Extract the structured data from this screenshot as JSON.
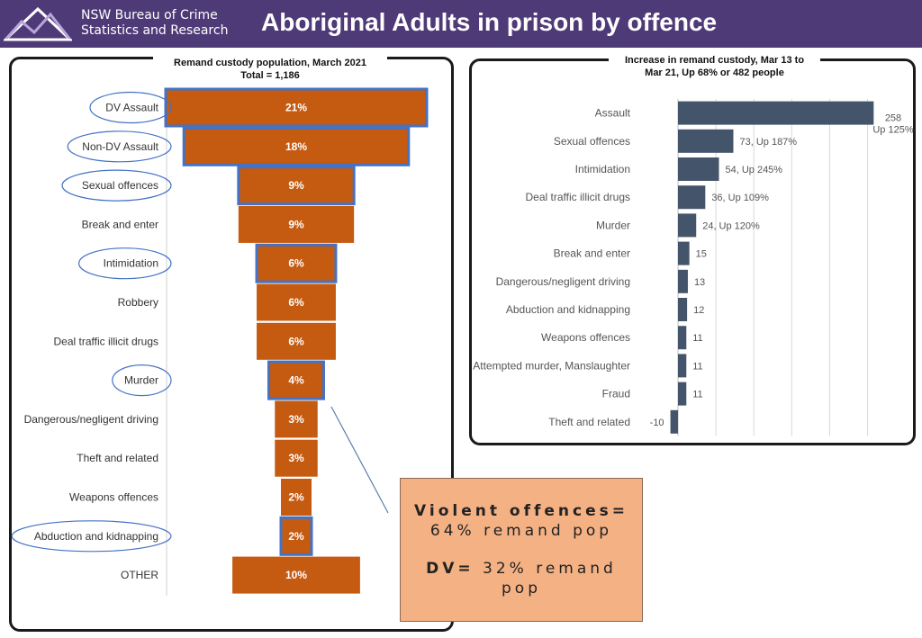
{
  "header": {
    "org_line1": "NSW Bureau of Crime",
    "org_line2": "Statistics and Research",
    "title": "Aboriginal Adults in prison by offence",
    "bg_color": "#4f3a78"
  },
  "chart_data": [
    {
      "type": "bar",
      "title_line1": "Remand custody population, March 2021",
      "title_line2": "Total = 1,186",
      "orientation": "horizontal-funnel",
      "categories": [
        "DV Assault",
        "Non-DV Assault",
        "Sexual offences",
        "Break and enter",
        "Intimidation",
        "Robbery",
        "Deal traffic illicit drugs",
        "Murder",
        "Dangerous/negligent driving",
        "Theft and related",
        "Weapons offences",
        "Abduction and kidnapping",
        "OTHER"
      ],
      "values": [
        21,
        18,
        9,
        9,
        6,
        6,
        6,
        4,
        3,
        3,
        2,
        2,
        10
      ],
      "labels": [
        "21%",
        "18%",
        "9%",
        "9%",
        "6%",
        "6%",
        "6%",
        "4%",
        "3%",
        "3%",
        "2%",
        "2%",
        "10%"
      ],
      "circled": [
        true,
        true,
        true,
        false,
        true,
        false,
        false,
        true,
        false,
        false,
        false,
        true,
        false
      ],
      "bar_color": "#c55a11",
      "highlight_border": "#4472c4"
    },
    {
      "type": "bar",
      "title_line1": "Increase in remand custody, Mar 13 to",
      "title_line2": "Mar 21, Up 68% or 482 people",
      "orientation": "horizontal",
      "categories": [
        "Assault",
        "Sexual offences",
        "Intimidation",
        "Deal traffic illicit drugs",
        "Murder",
        "Break and enter",
        "Dangerous/negligent driving",
        "Abduction and kidnapping",
        "Weapons offences",
        "Attempted murder, Manslaughter",
        "Fraud",
        "Theft and related"
      ],
      "values": [
        258,
        73,
        54,
        36,
        24,
        15,
        13,
        12,
        11,
        11,
        11,
        -10
      ],
      "labels": [
        "258",
        "73, Up 187%",
        "54, Up 245%",
        "36, Up 109%",
        "24, Up 120%",
        "15",
        "13",
        "12",
        "11",
        "11",
        "11",
        "-10"
      ],
      "assault_label_line2": "Up 125%",
      "xlim": [
        -20,
        260
      ],
      "grid_step": 50,
      "bar_color": "#44546a"
    }
  ],
  "callout": {
    "line1": "Violent offences=",
    "line2": "64% remand pop",
    "line3_bold": "DV=",
    "line3_rest": " 32% remand",
    "line4": "pop"
  }
}
